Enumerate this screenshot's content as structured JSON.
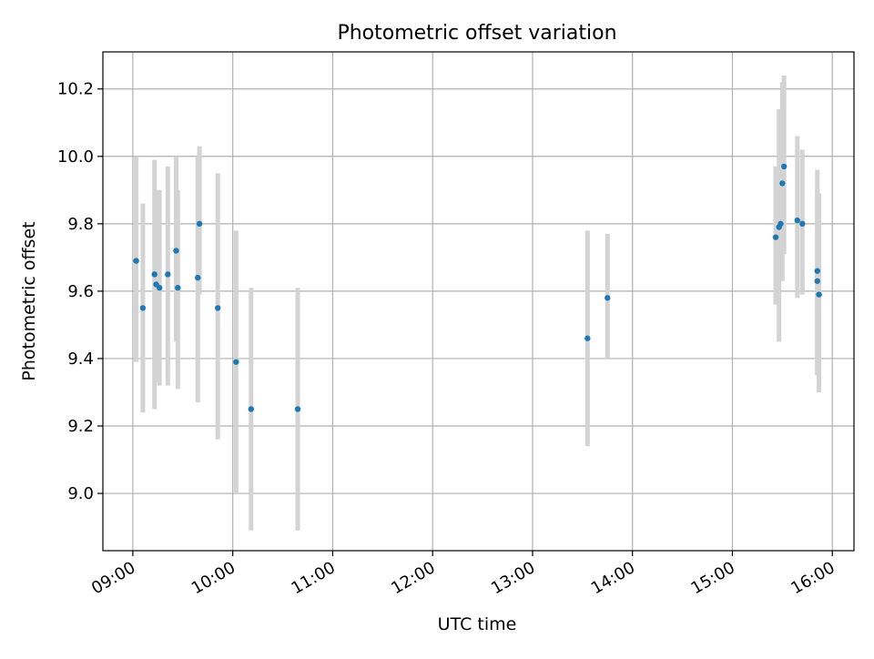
{
  "chart_data": {
    "type": "scatter",
    "title": "Photometric offset variation",
    "xlabel": "UTC time",
    "ylabel": "Photometric offset",
    "x_ticks": [
      "09:00",
      "10:00",
      "11:00",
      "12:00",
      "13:00",
      "14:00",
      "15:00",
      "16:00"
    ],
    "y_ticks": [
      "9.0",
      "9.2",
      "9.4",
      "9.6",
      "9.8",
      "10.0",
      "10.2"
    ],
    "xlim": [
      "08:42",
      "16:13"
    ],
    "ylim": [
      8.83,
      10.31
    ],
    "grid": true,
    "colors": {
      "point": "#1f77b4",
      "errorbar": "#d3d3d3",
      "grid": "#b0b0b0"
    },
    "points": [
      {
        "x": "09:02",
        "y": 9.69,
        "yerr_low": 9.39,
        "yerr_high": 10.0
      },
      {
        "x": "09:06",
        "y": 9.55,
        "yerr_low": 9.24,
        "yerr_high": 9.86
      },
      {
        "x": "09:13",
        "y": 9.65,
        "yerr_low": 9.25,
        "yerr_high": 9.99
      },
      {
        "x": "09:14",
        "y": 9.62,
        "yerr_low": 9.33,
        "yerr_high": 9.9
      },
      {
        "x": "09:16",
        "y": 9.61,
        "yerr_low": 9.32,
        "yerr_high": 9.9
      },
      {
        "x": "09:21",
        "y": 9.65,
        "yerr_low": 9.32,
        "yerr_high": 9.97
      },
      {
        "x": "09:26",
        "y": 9.72,
        "yerr_low": 9.45,
        "yerr_high": 10.0
      },
      {
        "x": "09:27",
        "y": 9.61,
        "yerr_low": 9.31,
        "yerr_high": 9.9
      },
      {
        "x": "09:39",
        "y": 9.64,
        "yerr_low": 9.27,
        "yerr_high": 10.0
      },
      {
        "x": "09:40",
        "y": 9.8,
        "yerr_low": 9.59,
        "yerr_high": 10.03
      },
      {
        "x": "09:51",
        "y": 9.55,
        "yerr_low": 9.16,
        "yerr_high": 9.95
      },
      {
        "x": "10:02",
        "y": 9.39,
        "yerr_low": 9.0,
        "yerr_high": 9.78
      },
      {
        "x": "10:11",
        "y": 9.25,
        "yerr_low": 8.89,
        "yerr_high": 9.61
      },
      {
        "x": "10:39",
        "y": 9.25,
        "yerr_low": 8.89,
        "yerr_high": 9.61
      },
      {
        "x": "13:33",
        "y": 9.46,
        "yerr_low": 9.14,
        "yerr_high": 9.78
      },
      {
        "x": "13:45",
        "y": 9.58,
        "yerr_low": 9.4,
        "yerr_high": 9.77
      },
      {
        "x": "15:26",
        "y": 9.76,
        "yerr_low": 9.56,
        "yerr_high": 9.97
      },
      {
        "x": "15:28",
        "y": 9.79,
        "yerr_low": 9.45,
        "yerr_high": 10.14
      },
      {
        "x": "15:29",
        "y": 9.8,
        "yerr_low": 9.66,
        "yerr_high": 10.01
      },
      {
        "x": "15:30",
        "y": 9.92,
        "yerr_low": 9.63,
        "yerr_high": 10.22
      },
      {
        "x": "15:31",
        "y": 9.97,
        "yerr_low": 9.71,
        "yerr_high": 10.24
      },
      {
        "x": "15:39",
        "y": 9.81,
        "yerr_low": 9.58,
        "yerr_high": 10.06
      },
      {
        "x": "15:42",
        "y": 9.8,
        "yerr_low": 9.59,
        "yerr_high": 10.02
      },
      {
        "x": "15:51",
        "y": 9.66,
        "yerr_low": 9.35,
        "yerr_high": 9.96
      },
      {
        "x": "15:51",
        "y": 9.63,
        "yerr_low": 9.35,
        "yerr_high": 9.9
      },
      {
        "x": "15:52",
        "y": 9.59,
        "yerr_low": 9.3,
        "yerr_high": 9.89
      }
    ]
  }
}
